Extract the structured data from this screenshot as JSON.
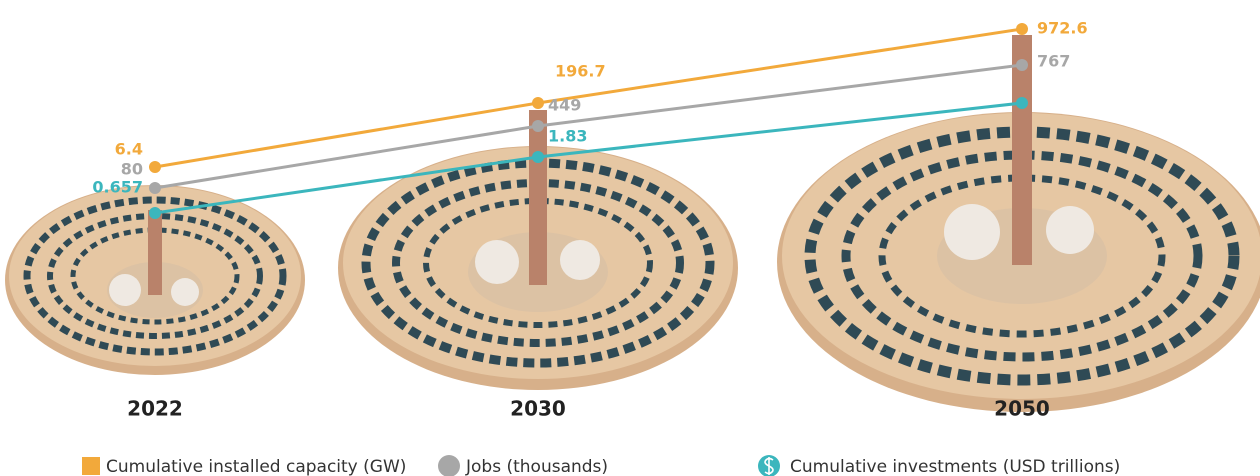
{
  "chart_data": {
    "type": "line",
    "categories": [
      "2022",
      "2030",
      "2050"
    ],
    "series": [
      {
        "name": "Cumulative installed capacity (GW)",
        "color": "#f2a93b",
        "values": [
          6.4,
          196.7,
          972.6
        ]
      },
      {
        "name": "Jobs (thousands)",
        "color": "#a7a7a7",
        "values": [
          80,
          449,
          767
        ]
      },
      {
        "name": "Cumulative investments (USD trillions)",
        "color": "#3bb6bd",
        "values": [
          0.657,
          1.83,
          null
        ]
      }
    ]
  }
}
